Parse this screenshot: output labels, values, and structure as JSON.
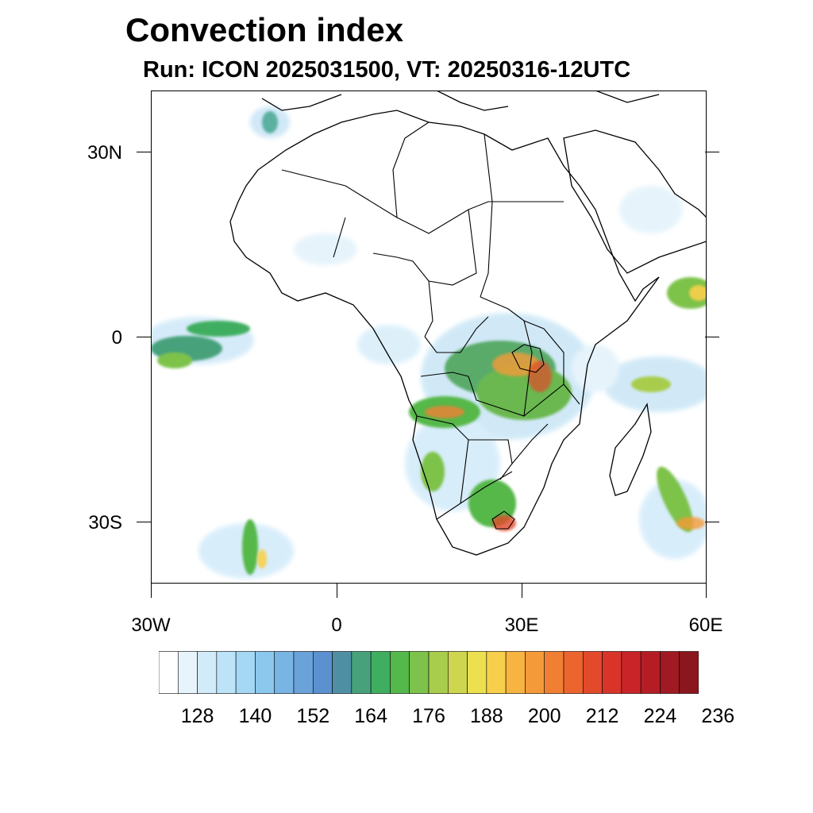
{
  "header": {
    "title": "Convection index",
    "subtitle": "Run: ICON 2025031500,  VT: 20250316-12UTC"
  },
  "axes": {
    "lat_labels": [
      "30N",
      "0",
      "30S"
    ],
    "lon_labels": [
      "30W",
      "0",
      "30E",
      "60E"
    ]
  },
  "colorbar": {
    "labels": [
      "128",
      "140",
      "152",
      "164",
      "176",
      "188",
      "200",
      "212",
      "224",
      "236"
    ],
    "colors": [
      "#ffffff",
      "#e8f4fc",
      "#d2ebfa",
      "#bde3f8",
      "#a5d8f5",
      "#8cc8ee",
      "#78b4e4",
      "#6aa2da",
      "#5b91cf",
      "#4f8fa3",
      "#47a27c",
      "#3fae60",
      "#55b84a",
      "#7dc24a",
      "#a8cc4c",
      "#cdd64e",
      "#ece04f",
      "#f8cf4a",
      "#f7b441",
      "#f59a39",
      "#f17f33",
      "#ec642e",
      "#e3492b",
      "#d93429",
      "#c92427",
      "#b51d25",
      "#9f1a22",
      "#8a161e"
    ]
  }
}
